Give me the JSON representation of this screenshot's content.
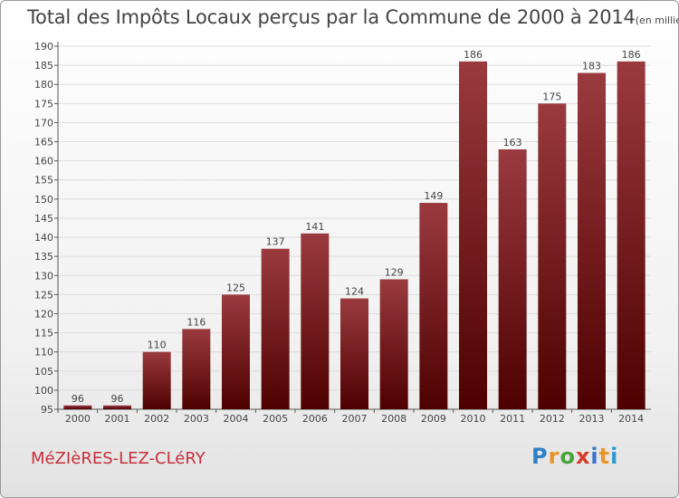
{
  "header": {
    "title": "Total des Impôts Locaux perçus par la Commune de 2000 à 2014",
    "units": "(en milliers d'€)"
  },
  "footer": {
    "commune": "MéZIèRES-LEZ-CLéRY",
    "brand": {
      "letters": [
        "P",
        "r",
        "o",
        "x",
        "i",
        "t",
        "i"
      ],
      "colors": [
        "#2f7fc4",
        "#e8962a",
        "#4aa33a",
        "#d63a2a",
        "#3a73c8",
        "#e8962a",
        "#2f9ad0"
      ]
    }
  },
  "chart_data": {
    "type": "bar",
    "categories": [
      "2000",
      "2001",
      "2002",
      "2003",
      "2004",
      "2005",
      "2006",
      "2007",
      "2008",
      "2009",
      "2010",
      "2011",
      "2012",
      "2013",
      "2014"
    ],
    "values": [
      96,
      96,
      110,
      116,
      125,
      137,
      141,
      124,
      129,
      149,
      186,
      163,
      175,
      183,
      186
    ],
    "ylim": [
      95,
      190
    ],
    "yticks": [
      95,
      100,
      105,
      110,
      115,
      120,
      125,
      130,
      135,
      140,
      145,
      150,
      155,
      160,
      165,
      170,
      175,
      180,
      185,
      190
    ],
    "grid": true,
    "colors": {
      "bar_top": "#9a3a3f",
      "bar_bottom": "#4e0000",
      "grid": "#dddddd"
    }
  }
}
